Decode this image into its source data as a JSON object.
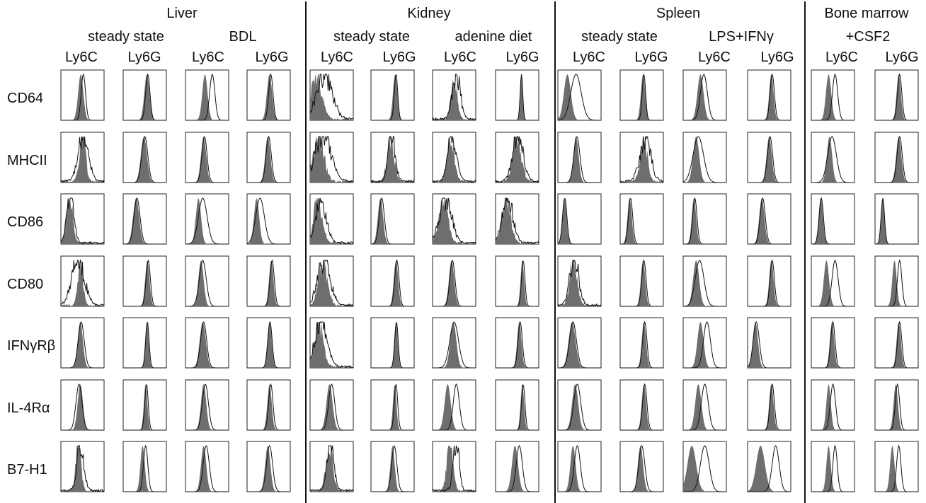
{
  "chart_data": {
    "type": "histogram-grid",
    "tissues": [
      {
        "name": "Liver",
        "conditions": [
          {
            "label": "steady state",
            "markers": [
              "Ly6C",
              "Ly6G"
            ]
          },
          {
            "label": "BDL",
            "markers": [
              "Ly6C",
              "Ly6G"
            ]
          }
        ]
      },
      {
        "name": "Kidney",
        "conditions": [
          {
            "label": "steady state",
            "markers": [
              "Ly6C",
              "Ly6G"
            ]
          },
          {
            "label": "adenine diet",
            "markers": [
              "Ly6C",
              "Ly6G"
            ]
          }
        ]
      },
      {
        "name": "Spleen",
        "conditions": [
          {
            "label": "steady state",
            "markers": [
              "Ly6C",
              "Ly6G"
            ]
          },
          {
            "label": "LPS+IFNγ",
            "markers": [
              "Ly6C",
              "Ly6G"
            ]
          }
        ]
      },
      {
        "name": "Bone marrow",
        "conditions": [
          {
            "label": "+CSF2",
            "markers": [
              "Ly6C",
              "Ly6G"
            ]
          }
        ]
      }
    ],
    "rows": [
      "CD64",
      "MHCII",
      "CD86",
      "CD80",
      "IFNγRβ",
      "IL-4Rα",
      "B7-H1"
    ],
    "series": [
      {
        "style": "filled gray (isotype)"
      },
      {
        "style": "open black line (stain)"
      }
    ],
    "axis": {
      "ticks": false,
      "grid": false
    }
  }
}
